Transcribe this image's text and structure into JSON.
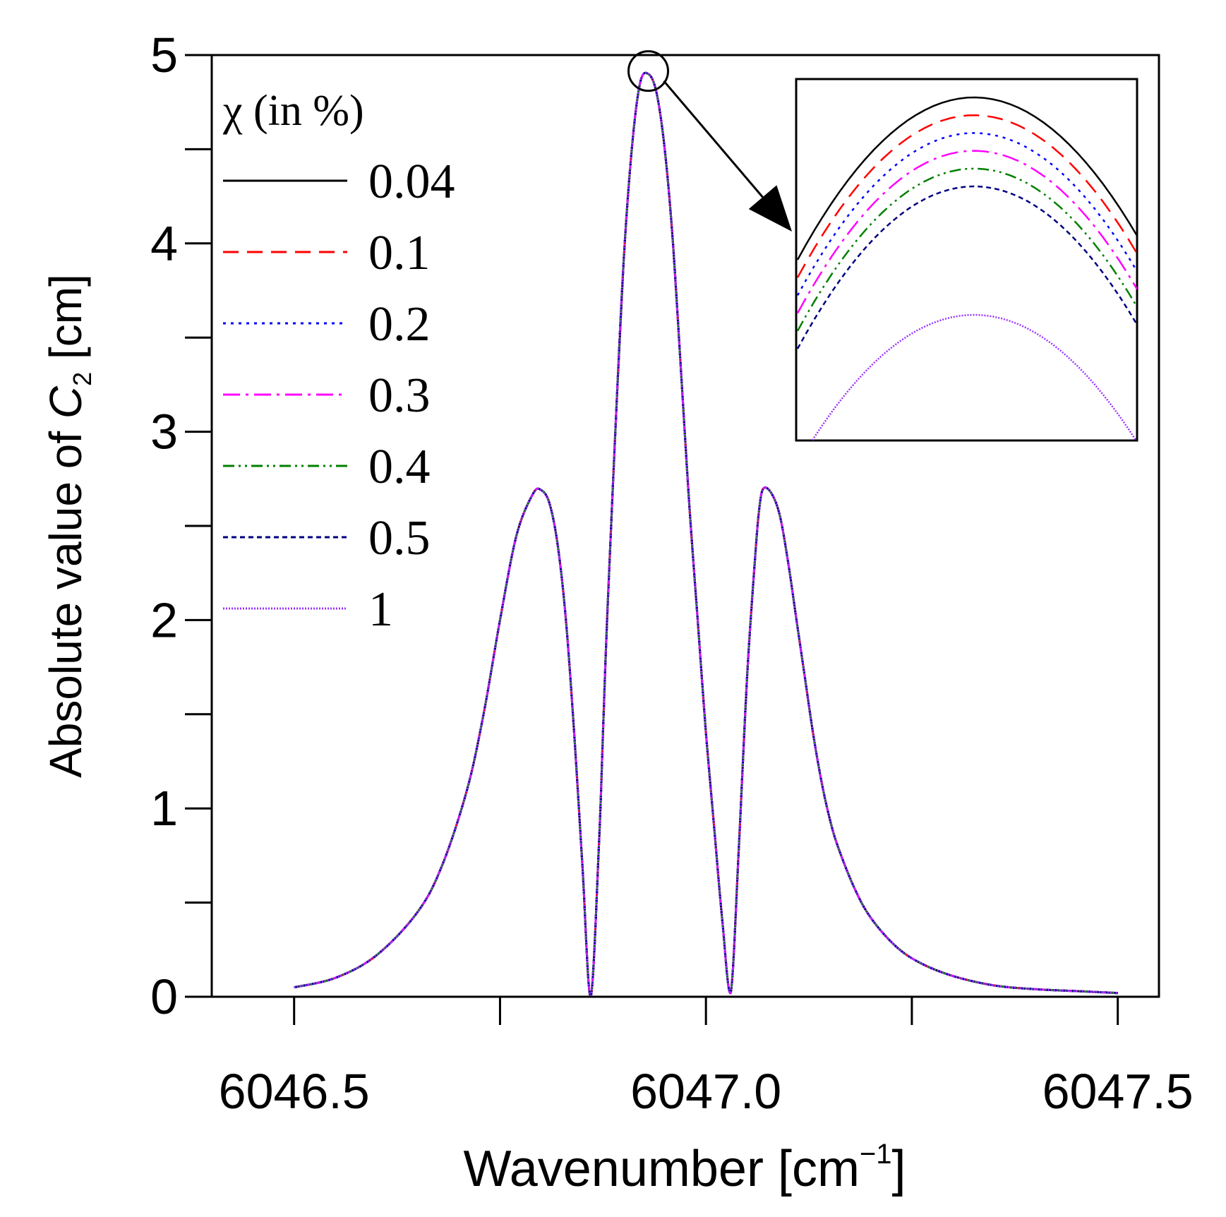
{
  "chart_data": {
    "type": "line",
    "title": "",
    "xlabel": "Wavenumber [cm",
    "xlabel_sup": "−1",
    "xlabel_end": "]",
    "ylabel": "Absolute value of ",
    "ylabel_var": "C",
    "ylabel_sub": "2",
    "ylabel_end": " [cm]",
    "xlim": [
      6046.4,
      6047.55
    ],
    "ylim": [
      0,
      5
    ],
    "xticks": [
      6046.5,
      6047.0,
      6047.5
    ],
    "xtick_labels": [
      "6046.5",
      "6047.0",
      "6047.5"
    ],
    "xminor": [
      6046.75,
      6047.25
    ],
    "yticks": [
      0,
      1,
      2,
      3,
      4,
      5
    ],
    "ytick_labels": [
      "0",
      "1",
      "2",
      "3",
      "4",
      "5"
    ],
    "yminor": [
      0.5,
      1.5,
      2.5,
      3.5,
      4.5
    ],
    "legend_title": "χ (in %)",
    "legend_position": "top-left",
    "curve": {
      "x": [
        6046.5,
        6046.55,
        6046.6,
        6046.65,
        6046.68,
        6046.71,
        6046.73,
        6046.75,
        6046.77,
        6046.79,
        6046.8,
        6046.81,
        6046.82,
        6046.83,
        6046.84,
        6046.85,
        6046.86,
        6046.87,
        6046.875,
        6046.88,
        6046.89,
        6046.9,
        6046.91,
        6046.92,
        6046.93,
        6046.94,
        6046.95,
        6046.96,
        6046.97,
        6046.98,
        6046.99,
        6047.0,
        6047.01,
        6047.02,
        6047.03,
        6047.04,
        6047.05,
        6047.06,
        6047.065,
        6047.07,
        6047.08,
        6047.09,
        6047.1,
        6047.11,
        6047.12,
        6047.13,
        6047.14,
        6047.15,
        6047.16,
        6047.18,
        6047.2,
        6047.23,
        6047.26,
        6047.3,
        6047.35,
        6047.4,
        6047.45,
        6047.5
      ],
      "y": [
        0.05,
        0.1,
        0.22,
        0.45,
        0.7,
        1.1,
        1.5,
        2.0,
        2.45,
        2.67,
        2.69,
        2.62,
        2.4,
        2.0,
        1.4,
        0.7,
        0.0,
        0.8,
        1.4,
        2.0,
        3.0,
        3.9,
        4.5,
        4.85,
        4.9,
        4.8,
        4.5,
        4.0,
        3.3,
        2.6,
        2.0,
        1.4,
        0.9,
        0.4,
        0.02,
        0.8,
        1.7,
        2.35,
        2.6,
        2.7,
        2.67,
        2.55,
        2.3,
        2.0,
        1.7,
        1.4,
        1.15,
        0.95,
        0.8,
        0.58,
        0.42,
        0.27,
        0.18,
        0.11,
        0.06,
        0.04,
        0.03,
        0.02
      ]
    },
    "peak_marker": {
      "x": 6046.93,
      "y": 4.9
    },
    "inset_offsets": [
      0,
      0.045,
      0.09,
      0.135,
      0.18,
      0.225,
      0.55
    ],
    "series": [
      {
        "name": "0.04",
        "color": "#000000",
        "dash": "none"
      },
      {
        "name": "0.1",
        "color": "#ff0000",
        "dash": "22,12"
      },
      {
        "name": "0.2",
        "color": "#0000ff",
        "dash": "4,7"
      },
      {
        "name": "0.3",
        "color": "#ff00ff",
        "dash": "24,8,4,8"
      },
      {
        "name": "0.4",
        "color": "#008000",
        "dash": "16,6,3,6,3,6"
      },
      {
        "name": "0.5",
        "color": "#000080",
        "dash": "7,5"
      },
      {
        "name": "1",
        "color": "#9933ff",
        "dash": "2,2"
      }
    ]
  }
}
